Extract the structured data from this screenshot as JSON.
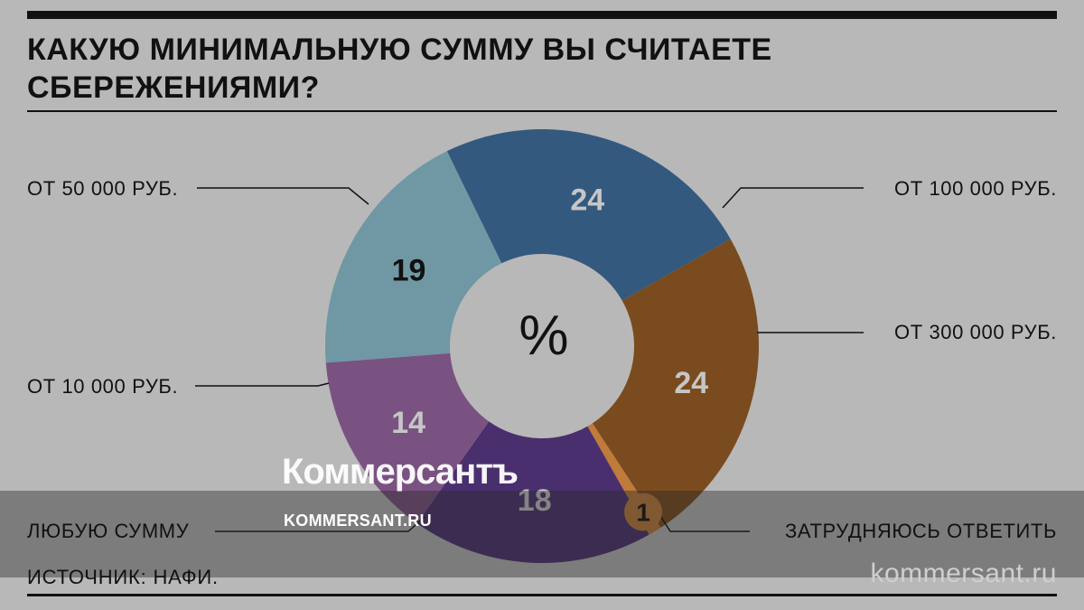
{
  "title": "КАКУЮ МИНИМАЛЬНУЮ СУММУ ВЫ СЧИТАЕТЕ СБЕРЕЖЕНИЯМИ?",
  "source": "ИСТОЧНИК: НАФИ.",
  "site": "kommersant.ru",
  "watermark": {
    "logo": "Коммерсантъ",
    "url": "KOMMERSANT.RU"
  },
  "chart_data": {
    "type": "pie",
    "center_label": "%",
    "slices": [
      {
        "label": "ОТ 100 000 РУБ.",
        "value": 24,
        "color": "#34597f",
        "text_color": "#c6c6c6"
      },
      {
        "label": "ОТ 300 000 РУБ.",
        "value": 24,
        "color": "#7a4b1e",
        "text_color": "#c6c6c6"
      },
      {
        "label": "ЗАТРУДНЯЮСЬ ОТВЕТИТЬ",
        "value": 1,
        "color": "#c07a3a",
        "text_color": "#111111"
      },
      {
        "label": "ЛЮБУЮ СУММУ",
        "value": 18,
        "color": "#4a2f6e",
        "text_color": "#c6c6c6"
      },
      {
        "label": "ОТ 10 000 РУБ.",
        "value": 14,
        "color": "#7a5282",
        "text_color": "#c6c6c6"
      },
      {
        "label": "ОТ 50 000 РУБ.",
        "value": 19,
        "color": "#6f98a4",
        "text_color": "#111111"
      }
    ]
  }
}
